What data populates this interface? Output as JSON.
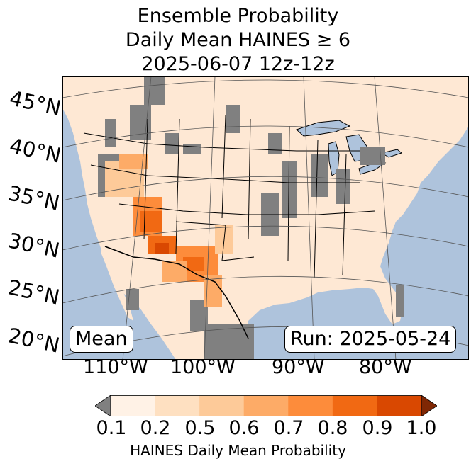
{
  "title": {
    "line1": "Ensemble Probability",
    "line2": "Daily Mean HAINES ≥ 6",
    "line3": "2025-06-07 12z-12z"
  },
  "map": {
    "region": "Continental United States",
    "projection": "Lambert Conformal",
    "lat_labels": [
      "45°N",
      "40°N",
      "35°N",
      "30°N",
      "25°N",
      "20°N"
    ],
    "lon_labels": [
      "110°W",
      "100°W",
      "90°W",
      "80°W"
    ],
    "ocean_color": "#aec3dc",
    "land_base_color": "#fee8d4",
    "missing_color": "#808080",
    "features": [
      "coastlines",
      "state borders",
      "country borders",
      "lakes",
      "lat/lon gridlines"
    ]
  },
  "annotations": {
    "stat_label": "Mean",
    "run_label": "Run: 2025-05-24"
  },
  "colorbar": {
    "label": "HAINES Daily Mean Probability",
    "ticks": [
      "0.1",
      "0.2",
      "0.5",
      "0.6",
      "0.7",
      "0.8",
      "0.9",
      "1.0"
    ],
    "under_color": "#808080",
    "over_color": "#7f2704",
    "colors": [
      "#fff2e6",
      "#fee0c1",
      "#fdca99",
      "#fdab67",
      "#fd8c3b",
      "#f16913",
      "#d94801"
    ],
    "extend": "both"
  },
  "chart_data": {
    "type": "heatmap",
    "title": "Ensemble Probability Daily Mean HAINES ≥ 6 2025-06-07 12z-12z",
    "xlabel": "",
    "ylabel": "",
    "value_label": "HAINES Daily Mean Probability",
    "bins": [
      0.1,
      0.2,
      0.5,
      0.6,
      0.7,
      0.8,
      0.9,
      1.0
    ],
    "extend": "both",
    "lat_range": [
      20,
      47
    ],
    "lon_range": [
      -125,
      -67
    ],
    "highlights": [
      {
        "area": "Arizona / southern Nevada",
        "value": 0.8
      },
      {
        "area": "southern New Mexico / west Texas",
        "value": 0.7
      },
      {
        "area": "Great Basin (Nevada/Utah)",
        "value": 0.5
      },
      {
        "area": "northern Mexico (Chihuahua)",
        "value": 0.7
      },
      {
        "area": "most of CONUS",
        "value": 0.15
      }
    ]
  }
}
